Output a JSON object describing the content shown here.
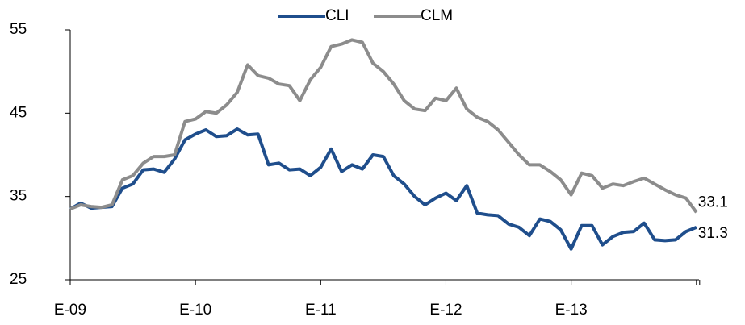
{
  "chart_data": {
    "type": "line",
    "categories": [
      "E-09",
      null,
      null,
      null,
      null,
      null,
      null,
      null,
      null,
      null,
      null,
      null,
      "E-10",
      null,
      null,
      null,
      null,
      null,
      null,
      null,
      null,
      null,
      null,
      null,
      "E-11",
      null,
      null,
      null,
      null,
      null,
      null,
      null,
      null,
      null,
      null,
      null,
      "E-12",
      null,
      null,
      null,
      null,
      null,
      null,
      null,
      null,
      null,
      null,
      null,
      "E-13",
      null,
      null,
      null,
      null,
      null,
      null,
      null,
      null,
      null,
      null,
      null,
      null
    ],
    "series": [
      {
        "name": "CLI",
        "color": "#1f4e8c",
        "values": [
          33.5,
          34.2,
          33.6,
          33.7,
          33.8,
          36,
          36.5,
          38.2,
          38.3,
          37.9,
          39.5,
          41.8,
          42.5,
          43,
          42.2,
          42.3,
          43.1,
          42.4,
          42.5,
          38.8,
          39,
          38.2,
          38.3,
          37.5,
          38.5,
          40.7,
          38,
          38.8,
          38.3,
          40,
          39.8,
          37.5,
          36.5,
          35,
          34,
          34.8,
          35.4,
          34.5,
          36.3,
          33,
          32.8,
          32.7,
          31.7,
          31.3,
          30.3,
          32.3,
          32,
          31,
          28.7,
          31.5,
          31.5,
          29.2,
          30.2,
          30.7,
          30.8,
          31.8,
          29.8,
          29.7,
          29.8,
          30.8,
          31.3
        ]
      },
      {
        "name": "CLM",
        "color": "#8c8c8c",
        "values": [
          33.5,
          34,
          33.8,
          33.7,
          34,
          37,
          37.5,
          39,
          39.8,
          39.8,
          40,
          44,
          44.3,
          45.2,
          45,
          46,
          47.5,
          50.8,
          49.5,
          49.2,
          48.5,
          48.3,
          46.5,
          49,
          50.5,
          53,
          53.3,
          53.8,
          53.5,
          51,
          50,
          48.5,
          46.5,
          45.5,
          45.3,
          46.8,
          46.5,
          48,
          45.5,
          44.5,
          44,
          43,
          41.5,
          40,
          38.8,
          38.8,
          38,
          37,
          35.2,
          37.8,
          37.5,
          36,
          36.5,
          36.3,
          36.8,
          37.2,
          36.5,
          35.8,
          35.2,
          34.8,
          33.1
        ]
      }
    ],
    "ylim": [
      25,
      55
    ],
    "yticks": [
      25,
      35,
      45,
      55
    ],
    "grid": false
  }
}
